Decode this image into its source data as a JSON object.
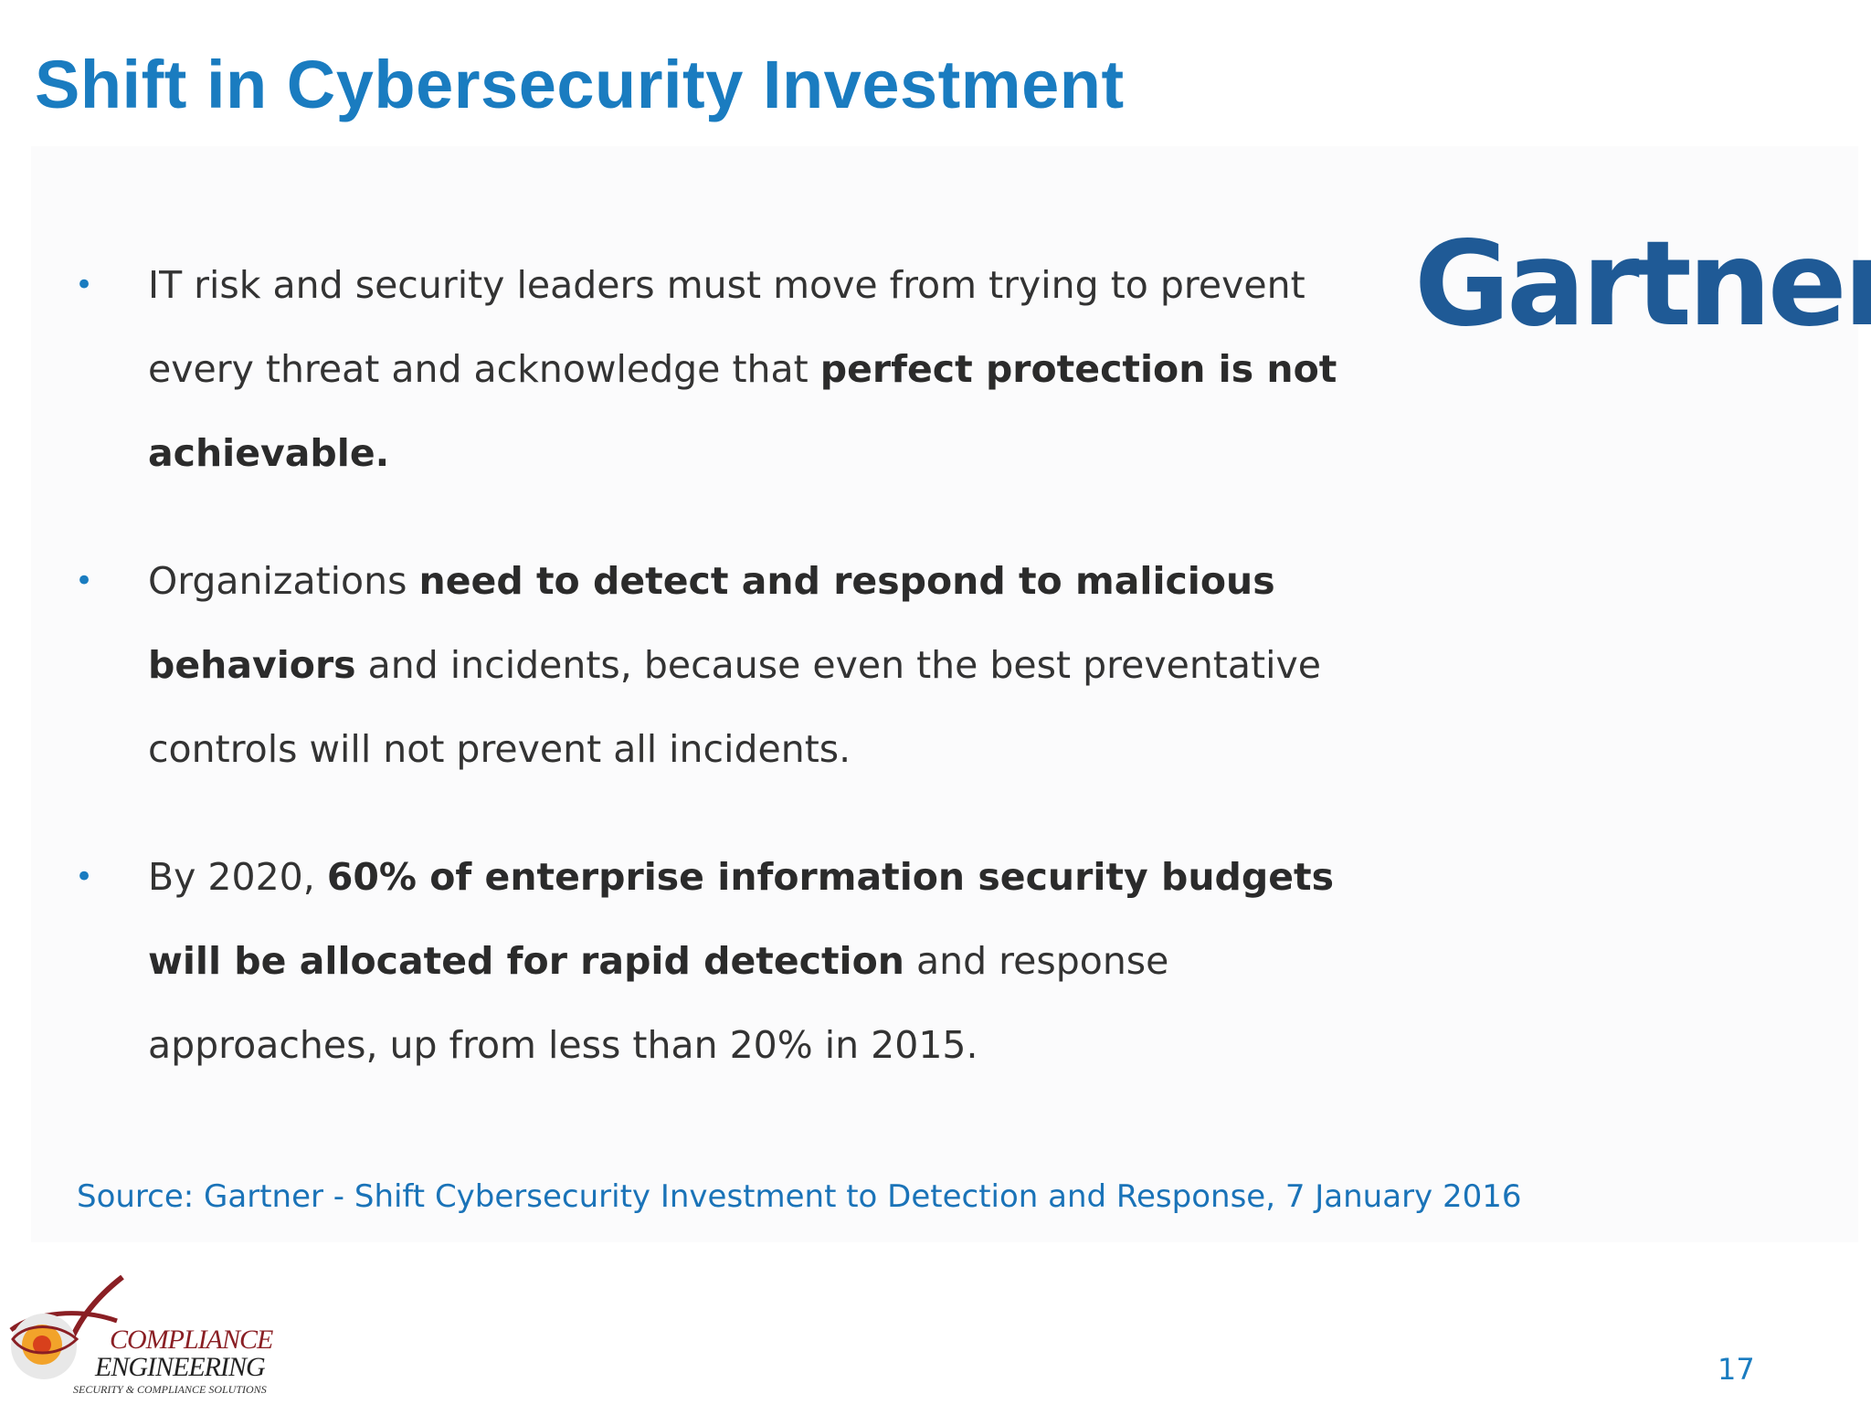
{
  "slide": {
    "title": "Shift in Cybersecurity Investment",
    "bullets": [
      {
        "segments": [
          {
            "text": "IT risk and security leaders must move from trying to prevent every threat and acknowledge that ",
            "bold": false
          },
          {
            "text": "perfect protection is not achievable.",
            "bold": true
          }
        ]
      },
      {
        "segments": [
          {
            "text": "Organizations ",
            "bold": false
          },
          {
            "text": "need to detect and respond to malicious behaviors",
            "bold": true
          },
          {
            "text": " and incidents, because even the best preventative controls will not prevent all incidents.",
            "bold": false
          }
        ]
      },
      {
        "segments": [
          {
            "text": "By 2020, ",
            "bold": false
          },
          {
            "text": "60% of enterprise information security budgets will be allocated for rapid detection",
            "bold": true
          },
          {
            "text": " and response approaches, up from less than 20% in 2015.",
            "bold": false
          }
        ]
      }
    ],
    "bullet_symbol": "•",
    "source": "Source: Gartner - Shift Cybersecurity Investment to Detection and Response, 7 January 2016",
    "page_number": "17"
  },
  "logos": {
    "gartner": {
      "text": "Gartner",
      "registered": "®",
      "color": "#1f5a96"
    },
    "compliance_engineering": {
      "line1": "COMPLIANCE",
      "line2": "ENGINEERING",
      "tagline": "SECURITY & COMPLIANCE SOLUTIONS"
    }
  },
  "colors": {
    "accent": "#1a7cc0",
    "body_text": "#333333",
    "logo_red": "#8a1f24"
  }
}
